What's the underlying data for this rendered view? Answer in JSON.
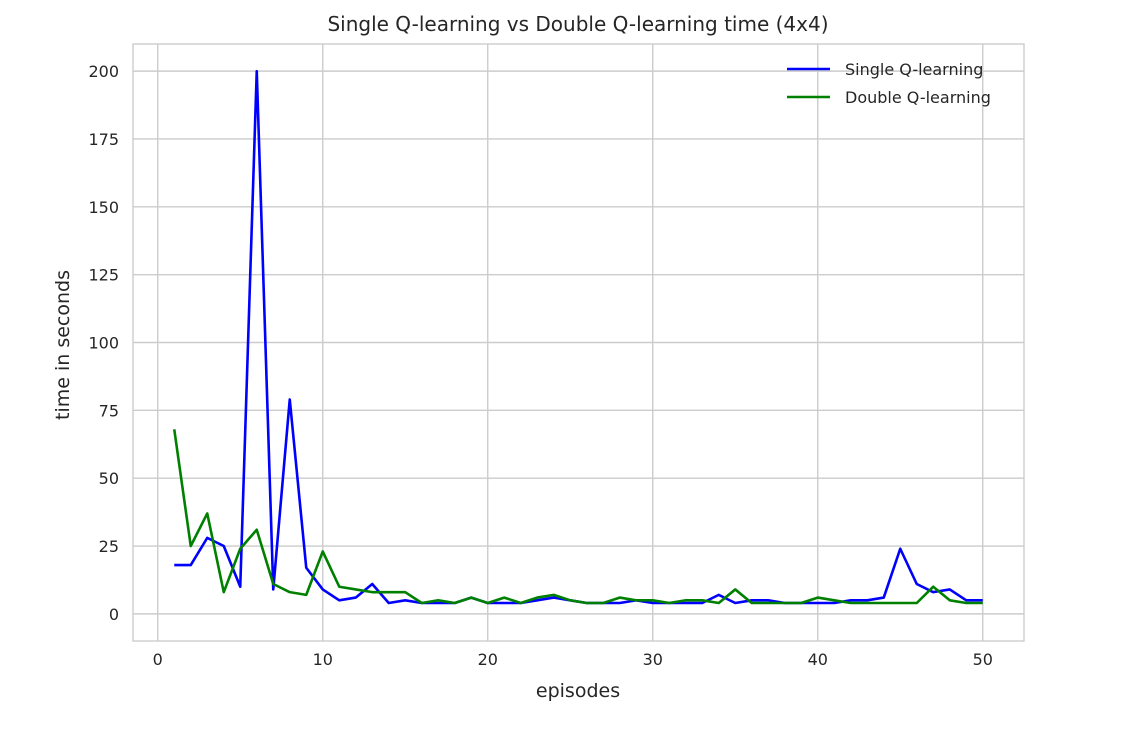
{
  "chart_data": {
    "type": "line",
    "title": "Single Q-learning vs Double Q-learning time (4x4)",
    "xlabel": "episodes",
    "ylabel": "time in seconds",
    "xlim": [
      -1.5,
      52.5
    ],
    "ylim": [
      -10,
      210
    ],
    "xticks": [
      0,
      10,
      20,
      30,
      40,
      50
    ],
    "yticks": [
      0,
      25,
      50,
      75,
      100,
      125,
      150,
      175,
      200
    ],
    "grid": true,
    "legend_position": "upper right",
    "x": [
      1,
      2,
      3,
      4,
      5,
      6,
      7,
      8,
      9,
      10,
      11,
      12,
      13,
      14,
      15,
      16,
      17,
      18,
      19,
      20,
      21,
      22,
      23,
      24,
      25,
      26,
      27,
      28,
      29,
      30,
      31,
      32,
      33,
      34,
      35,
      36,
      37,
      38,
      39,
      40,
      41,
      42,
      43,
      44,
      45,
      46,
      47,
      48,
      49,
      50
    ],
    "series": [
      {
        "name": "Single Q-learning",
        "color": "#0000ff",
        "values": [
          18,
          18,
          28,
          25,
          10,
          200,
          9,
          79,
          17,
          9,
          5,
          6,
          11,
          4,
          5,
          4,
          4,
          4,
          6,
          4,
          4,
          4,
          5,
          6,
          5,
          4,
          4,
          4,
          5,
          4,
          4,
          4,
          4,
          7,
          4,
          5,
          5,
          4,
          4,
          4,
          4,
          5,
          5,
          6,
          24,
          11,
          8,
          9,
          5,
          5
        ]
      },
      {
        "name": "Double Q-learning",
        "color": "#008000",
        "values": [
          68,
          25,
          37,
          8,
          24,
          31,
          11,
          8,
          7,
          23,
          10,
          9,
          8,
          8,
          8,
          4,
          5,
          4,
          6,
          4,
          6,
          4,
          6,
          7,
          5,
          4,
          4,
          6,
          5,
          5,
          4,
          5,
          5,
          4,
          9,
          4,
          4,
          4,
          4,
          6,
          5,
          4,
          4,
          4,
          4,
          4,
          10,
          5,
          4,
          4
        ]
      }
    ]
  }
}
